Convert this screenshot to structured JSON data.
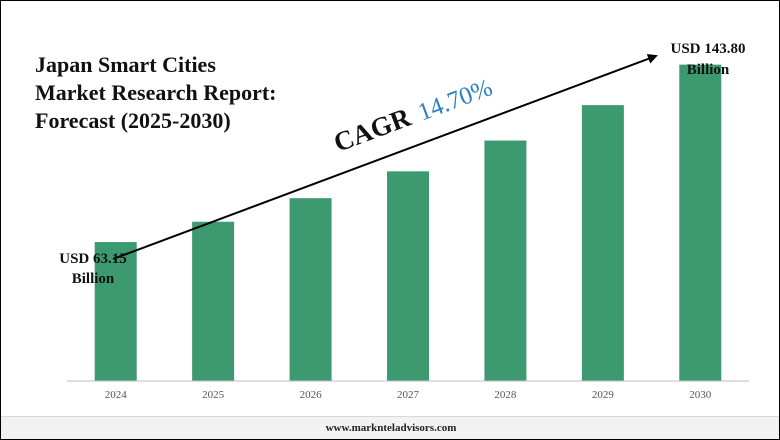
{
  "chart_data": {
    "type": "bar",
    "title": [
      "Japan Smart Cities",
      "Market Research Report:",
      "Forecast (2025-2030)"
    ],
    "categories": [
      "2024",
      "2025",
      "2026",
      "2027",
      "2028",
      "2029",
      "2030"
    ],
    "values": [
      63.15,
      72.4,
      83.1,
      95.3,
      109.3,
      125.4,
      143.8
    ],
    "unit": "USD Billion",
    "ylim": [
      0,
      160
    ],
    "xlabel": "",
    "ylabel": "",
    "grid": false,
    "annotations": {
      "start": {
        "line1": "USD 63.15",
        "line2": "Billion"
      },
      "end": {
        "line1": "USD 143.80",
        "line2": "Billion"
      },
      "cagr_label": "CAGR",
      "cagr_value": "14.70%"
    }
  },
  "colors": {
    "bar": "#3d9970",
    "arrow": "#000000",
    "cagr_value": "#2e7dc4",
    "text": "#111111"
  },
  "footer": {
    "website": "www.marknteladvisors.com"
  }
}
